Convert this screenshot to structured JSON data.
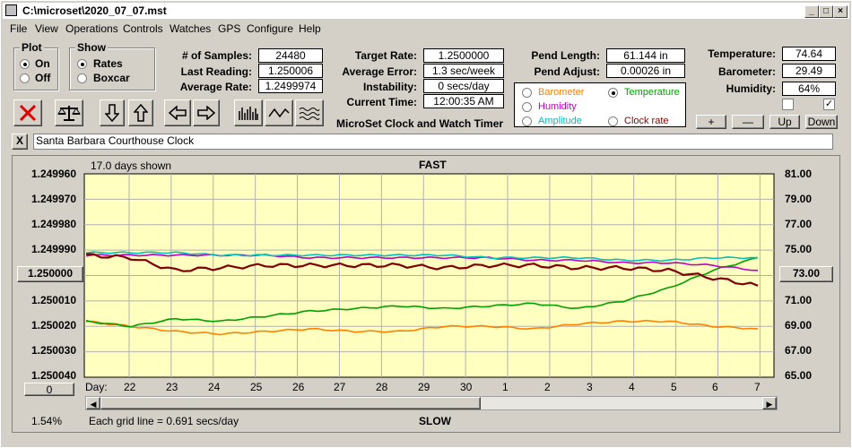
{
  "title": "C:\\microset\\2020_07_07.mst",
  "menu": [
    "File",
    "View",
    "Operations",
    "Controls",
    "Watches",
    "GPS",
    "Configure",
    "Help"
  ],
  "plot_group": {
    "title": "Plot",
    "options": [
      "On",
      "Off"
    ],
    "selected": 0
  },
  "show_group": {
    "title": "Show",
    "options": [
      "Rates",
      "Boxcar"
    ],
    "selected": 0
  },
  "stats": {
    "samples_label": "# of Samples:",
    "samples": "24480",
    "last_label": "Last Reading:",
    "last": "1.250006",
    "avg_label": "Average Rate:",
    "avg": "1.2499974",
    "target_label": "Target Rate:",
    "target": "1.2500000",
    "avgerr_label": "Average Error:",
    "avgerr": "1.3 sec/week",
    "instab_label": "Instability:",
    "instab": "0 secs/day",
    "time_label": "Current Time:",
    "time": "12:00:35 AM",
    "pendlen_label": "Pend Length:",
    "pendlen": "61.144 in",
    "pendadj_label": "Pend Adjust:",
    "pendadj": "0.00026 in",
    "temp_label": "Temperature:",
    "temp": "74.64",
    "baro_label": "Barometer:",
    "baro": "29.49",
    "hum_label": "Humidity:",
    "hum": "64%"
  },
  "app_caption": "MicroSet Clock and Watch Timer",
  "legend": {
    "items": [
      {
        "label": "Barometer",
        "color": "#ff8000",
        "selected": false
      },
      {
        "label": "Temperature",
        "color": "#00a000",
        "selected": true
      },
      {
        "label": "Humidity",
        "color": "#c000c0",
        "selected": false
      },
      {
        "label": "Amplitude",
        "color": "#00c0c0",
        "selected": false
      },
      {
        "label": "Clock rate",
        "color": "#800000",
        "selected": false
      }
    ]
  },
  "adj_buttons": [
    "+",
    "—",
    "Up",
    "Down"
  ],
  "clock_name": "Santa Barbara Courthouse Clock",
  "close_x": "X",
  "chart": {
    "days_shown": "17.0 days shown",
    "top_label": "FAST",
    "bottom_label": "SLOW",
    "left_ticks": [
      "1.249960",
      "1.249970",
      "1.249980",
      "1.249990",
      "1.250000",
      "1.250010",
      "1.250020",
      "1.250030",
      "1.250040"
    ],
    "right_ticks": [
      "81.00",
      "79.00",
      "77.00",
      "75.00",
      "73.00",
      "71.00",
      "69.00",
      "67.00",
      "65.00"
    ],
    "highlight_left": "1.250000",
    "highlight_right": "73.00",
    "day_label": "Day:",
    "days": [
      "22",
      "23",
      "24",
      "25",
      "26",
      "27",
      "28",
      "29",
      "30",
      "1",
      "2",
      "3",
      "4",
      "5",
      "6",
      "7"
    ],
    "zero_btn": "0",
    "pct": "1.54%",
    "grid_note": "Each grid line = 0.691 secs/day"
  },
  "chart_data": {
    "type": "line",
    "x_label": "Day",
    "x": [
      "22",
      "23",
      "24",
      "25",
      "26",
      "27",
      "28",
      "29",
      "30",
      "1",
      "2",
      "3",
      "4",
      "5",
      "6",
      "7"
    ],
    "ylim": [
      1.24996,
      1.25004
    ],
    "y2lim": [
      65,
      81
    ],
    "series": [
      {
        "name": "Clock rate",
        "values": [
          1.249992,
          1.249993,
          1.249998,
          1.249997,
          1.249996,
          1.249996,
          1.249996,
          1.249996,
          1.249997,
          1.249996,
          1.249996,
          1.249997,
          1.249997,
          1.249998,
          1.250001,
          1.250004
        ]
      },
      {
        "name": "Amplitude",
        "values": [
          1.249991,
          1.249991,
          1.249991,
          1.249992,
          1.249992,
          1.249992,
          1.249992,
          1.249992,
          1.249992,
          1.249993,
          1.249993,
          1.249993,
          1.249994,
          1.249994,
          1.249993,
          1.249993
        ]
      },
      {
        "name": "Humidity",
        "values": [
          1.249992,
          1.249992,
          1.249992,
          1.249992,
          1.249992,
          1.249993,
          1.249993,
          1.249993,
          1.249993,
          1.249993,
          1.249994,
          1.249994,
          1.249995,
          1.249995,
          1.249996,
          1.249998
        ]
      },
      {
        "name": "Temperature",
        "values": [
          1.250018,
          1.25002,
          1.250017,
          1.250018,
          1.250016,
          1.250014,
          1.250013,
          1.250012,
          1.250013,
          1.250012,
          1.250011,
          1.250013,
          1.25001,
          1.250005,
          1.249998,
          1.249993
        ]
      },
      {
        "name": "Barometer",
        "values": [
          1.250018,
          1.25002,
          1.250022,
          1.250023,
          1.250022,
          1.250021,
          1.250022,
          1.250022,
          1.25002,
          1.25002,
          1.250021,
          1.250019,
          1.250018,
          1.250018,
          1.25002,
          1.250021
        ]
      }
    ]
  }
}
